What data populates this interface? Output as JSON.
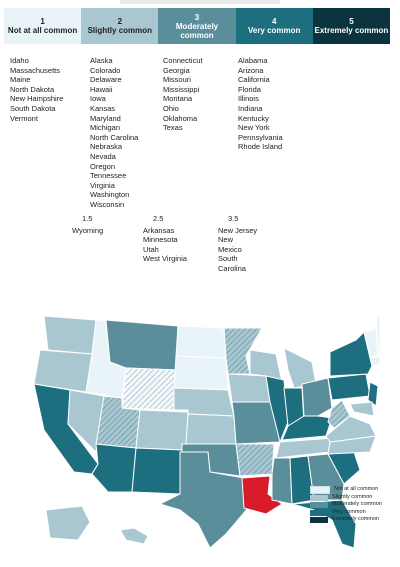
{
  "colors": {
    "c1": "#e9f4f8",
    "c2": "#a9c7d1",
    "c3": "#5b8e9b",
    "c4": "#1d6f80",
    "c5": "#0b3440",
    "highlight": "#d81b2b"
  },
  "legend": [
    {
      "num": "1",
      "label": "Not at all common",
      "color": "c1",
      "text": "#222"
    },
    {
      "num": "2",
      "label": "Slightly common",
      "color": "c2",
      "text": "#222"
    },
    {
      "num": "3",
      "label": "Moderately common",
      "color": "c3",
      "text": "#fff"
    },
    {
      "num": "4",
      "label": "Very common",
      "color": "c4",
      "text": "#fff"
    },
    {
      "num": "5",
      "label": "Extremely common",
      "color": "c5",
      "text": "#fff"
    }
  ],
  "groups": {
    "g1": [
      "Idaho",
      "Massachusetts",
      "Maine",
      "North Dakota",
      "New Hampshire",
      "South Dakota",
      "Vermont"
    ],
    "g2": [
      "Alaska",
      "Colorado",
      "Delaware",
      "Hawaii",
      "Iowa",
      "Kansas",
      "Maryland",
      "Michigan",
      "North Carolina",
      "Nebraska",
      "Nevada",
      "Oregon",
      "Tennessee",
      "Virginia",
      "Washington",
      "Wisconsin"
    ],
    "g3": [
      "Connecticut",
      "Georgia",
      "Missouri",
      "Mississippi",
      "Montana",
      "Ohio",
      "Oklahoma",
      "Texas"
    ],
    "g4": [
      "Alabama",
      "Arizona",
      "California",
      "Florida",
      "Illinois",
      "Indiana",
      "Kentucky",
      "New York",
      "Pennsylvania",
      "Rhode Island"
    ],
    "g15": {
      "label": "1.5",
      "states": [
        "Wyoming"
      ]
    },
    "g25": {
      "label": "2.5",
      "states": [
        "Arkansas",
        "Minnesota",
        "Utah",
        "West Virginia"
      ]
    },
    "g35": {
      "label": "3.5",
      "states": [
        "New Jersey",
        "New",
        "Mexico",
        "South",
        "Carolina"
      ]
    }
  },
  "map_legend": [
    "Not at all common",
    "Slightly common",
    "Moderately common",
    "Very common",
    "Extremely common"
  ]
}
